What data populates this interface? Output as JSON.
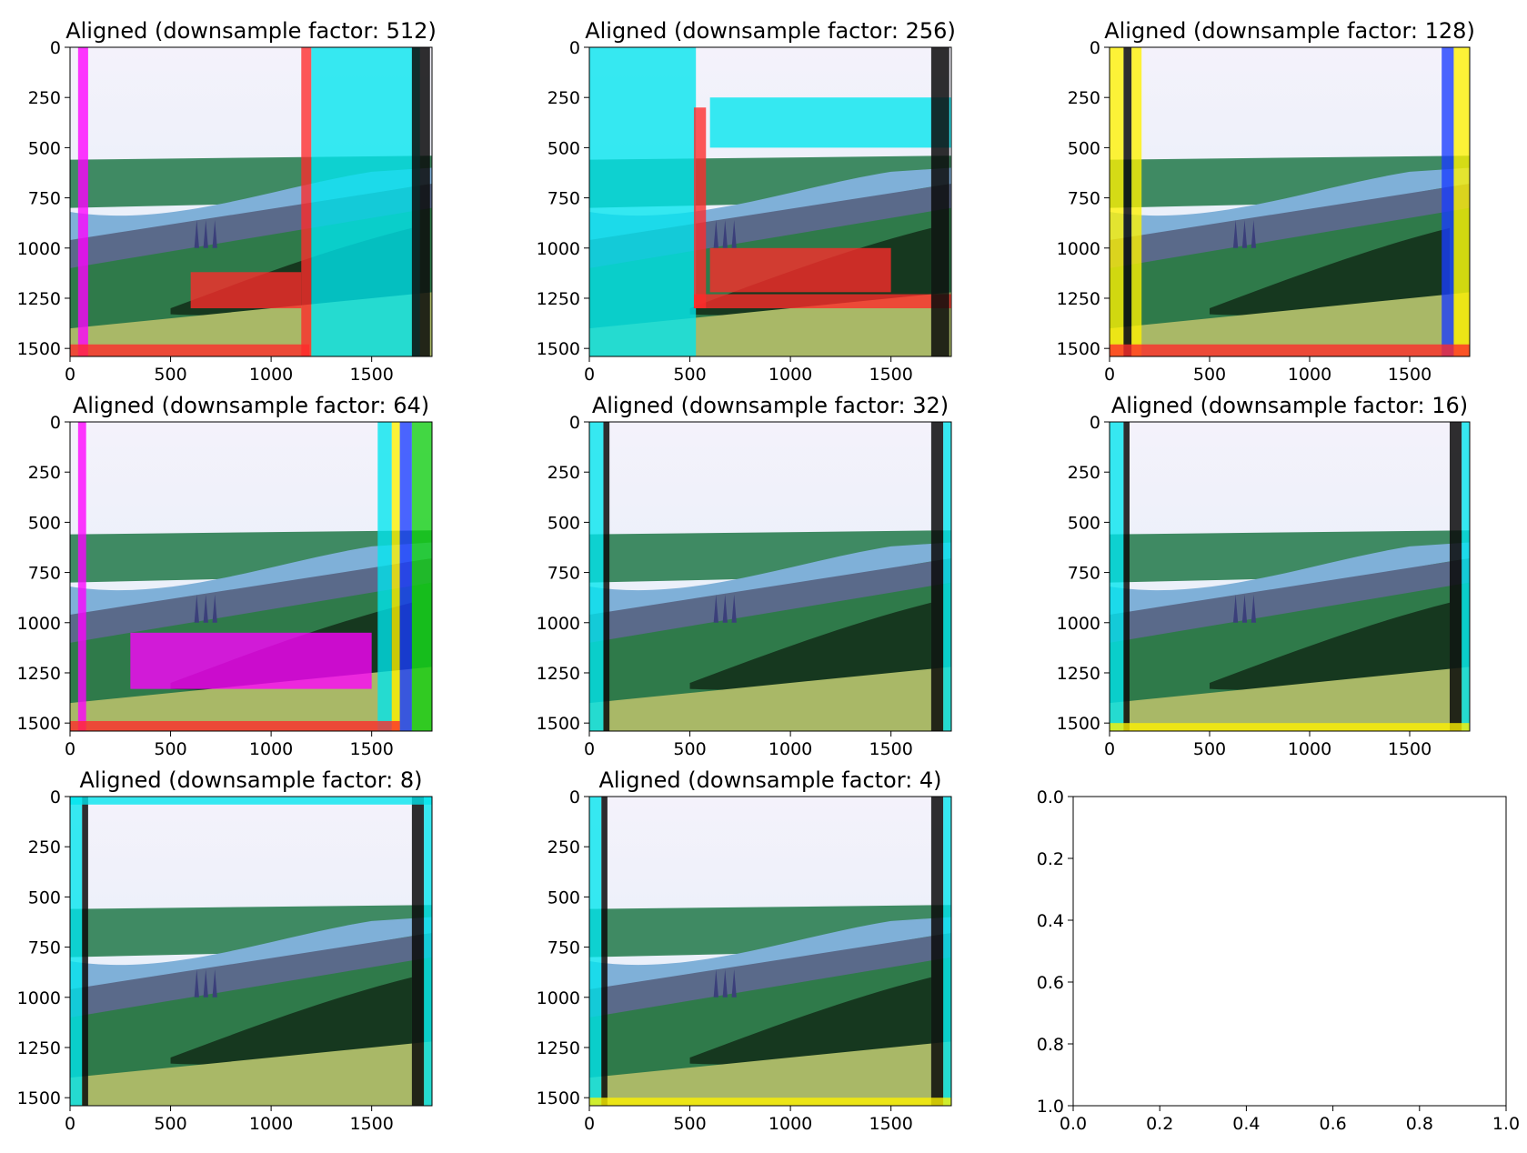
{
  "figure": {
    "layout": "3x3 grid of subplots",
    "colors": {
      "sky": "#e3eef8",
      "sky_top": "#f4f2fb",
      "water": "#7fb0d8",
      "hill_green": "#2f7a4a",
      "dark_forest": "#16381f",
      "meadow": "#a9b867",
      "cyan": "#00e6ee",
      "magenta": "#ff00ff",
      "yellow": "#fff200",
      "red": "#ff2a2a",
      "green": "#10d010",
      "blue": "#1a3cff",
      "black": "#0a0a0a"
    }
  },
  "chart_data": [
    {
      "type": "image",
      "title": "Aligned (downsample factor: 512)",
      "downsample_factor": 512,
      "xlim": [
        0,
        1800
      ],
      "ylim": [
        1540,
        0
      ],
      "xticks": [
        0,
        500,
        1000,
        1500
      ],
      "yticks": [
        0,
        250,
        500,
        750,
        1000,
        1250,
        1500
      ],
      "description_artifacts": [
        "cyan-band-right",
        "red-horizontal-band",
        "shifted-channel-seam"
      ],
      "artifact_bands": [
        {
          "x0": 1150,
          "x1": 1200,
          "y0": 0,
          "y1": 1540,
          "color": "red"
        },
        {
          "x0": 1200,
          "x1": 1740,
          "y0": 0,
          "y1": 1540,
          "color": "cyan"
        },
        {
          "x0": 40,
          "x1": 90,
          "y0": 0,
          "y1": 1540,
          "color": "magenta"
        },
        {
          "x0": 0,
          "x1": 1190,
          "y0": 1480,
          "y1": 1540,
          "color": "red"
        },
        {
          "x0": 600,
          "x1": 1150,
          "y0": 1120,
          "y1": 1300,
          "color": "red"
        },
        {
          "x0": 1700,
          "x1": 1790,
          "y0": 0,
          "y1": 1540,
          "color": "black"
        }
      ]
    },
    {
      "type": "image",
      "title": "Aligned (downsample factor: 256)",
      "downsample_factor": 256,
      "xlim": [
        0,
        1800
      ],
      "ylim": [
        1540,
        0
      ],
      "xticks": [
        0,
        500,
        1000,
        1500
      ],
      "yticks": [
        0,
        250,
        500,
        750,
        1000,
        1250,
        1500
      ],
      "artifact_bands": [
        {
          "x0": 0,
          "x1": 530,
          "y0": 0,
          "y1": 1540,
          "color": "cyan"
        },
        {
          "x0": 520,
          "x1": 580,
          "y0": 300,
          "y1": 1300,
          "color": "red"
        },
        {
          "x0": 520,
          "x1": 1800,
          "y0": 1230,
          "y1": 1300,
          "color": "red"
        },
        {
          "x0": 600,
          "x1": 1500,
          "y0": 1000,
          "y1": 1220,
          "color": "red"
        },
        {
          "x0": 600,
          "x1": 1800,
          "y0": 250,
          "y1": 500,
          "color": "cyan"
        },
        {
          "x0": 1700,
          "x1": 1790,
          "y0": 0,
          "y1": 1540,
          "color": "black"
        }
      ]
    },
    {
      "type": "image",
      "title": "Aligned (downsample factor: 128)",
      "downsample_factor": 128,
      "xlim": [
        0,
        1800
      ],
      "ylim": [
        1540,
        0
      ],
      "xticks": [
        0,
        500,
        1000,
        1500
      ],
      "yticks": [
        0,
        250,
        500,
        750,
        1000,
        1250,
        1500
      ],
      "artifact_bands": [
        {
          "x0": 0,
          "x1": 70,
          "y0": 0,
          "y1": 1540,
          "color": "yellow"
        },
        {
          "x0": 70,
          "x1": 110,
          "y0": 0,
          "y1": 1540,
          "color": "black"
        },
        {
          "x0": 110,
          "x1": 160,
          "y0": 0,
          "y1": 1540,
          "color": "yellow"
        },
        {
          "x0": 1720,
          "x1": 1800,
          "y0": 0,
          "y1": 1540,
          "color": "yellow"
        },
        {
          "x0": 1660,
          "x1": 1720,
          "y0": 0,
          "y1": 1540,
          "color": "blue"
        },
        {
          "x0": 0,
          "x1": 1800,
          "y0": 1480,
          "y1": 1540,
          "color": "red"
        }
      ]
    },
    {
      "type": "image",
      "title": "Aligned (downsample factor: 64)",
      "downsample_factor": 64,
      "xlim": [
        0,
        1800
      ],
      "ylim": [
        1540,
        0
      ],
      "xticks": [
        0,
        500,
        1000,
        1500
      ],
      "yticks": [
        0,
        250,
        500,
        750,
        1000,
        1250,
        1500
      ],
      "artifact_bands": [
        {
          "x0": 1530,
          "x1": 1600,
          "y0": 0,
          "y1": 1540,
          "color": "cyan"
        },
        {
          "x0": 1600,
          "x1": 1640,
          "y0": 0,
          "y1": 1540,
          "color": "yellow"
        },
        {
          "x0": 1640,
          "x1": 1700,
          "y0": 0,
          "y1": 1540,
          "color": "blue"
        },
        {
          "x0": 1700,
          "x1": 1800,
          "y0": 0,
          "y1": 1540,
          "color": "green"
        },
        {
          "x0": 40,
          "x1": 80,
          "y0": 0,
          "y1": 1540,
          "color": "magenta"
        },
        {
          "x0": 0,
          "x1": 1640,
          "y0": 1490,
          "y1": 1540,
          "color": "red"
        },
        {
          "x0": 300,
          "x1": 1500,
          "y0": 1050,
          "y1": 1330,
          "color": "magenta"
        }
      ]
    },
    {
      "type": "image",
      "title": "Aligned (downsample factor: 32)",
      "downsample_factor": 32,
      "xlim": [
        0,
        1800
      ],
      "ylim": [
        1540,
        0
      ],
      "xticks": [
        0,
        500,
        1000,
        1500
      ],
      "yticks": [
        0,
        250,
        500,
        750,
        1000,
        1250,
        1500
      ],
      "artifact_bands": [
        {
          "x0": 0,
          "x1": 70,
          "y0": 0,
          "y1": 1540,
          "color": "cyan"
        },
        {
          "x0": 70,
          "x1": 100,
          "y0": 0,
          "y1": 1540,
          "color": "black"
        },
        {
          "x0": 1700,
          "x1": 1760,
          "y0": 0,
          "y1": 1540,
          "color": "black"
        },
        {
          "x0": 1760,
          "x1": 1800,
          "y0": 0,
          "y1": 1540,
          "color": "cyan"
        }
      ]
    },
    {
      "type": "image",
      "title": "Aligned (downsample factor: 16)",
      "downsample_factor": 16,
      "xlim": [
        0,
        1800
      ],
      "ylim": [
        1540,
        0
      ],
      "xticks": [
        0,
        500,
        1000,
        1500
      ],
      "yticks": [
        0,
        250,
        500,
        750,
        1000,
        1250,
        1500
      ],
      "artifact_bands": [
        {
          "x0": 0,
          "x1": 70,
          "y0": 0,
          "y1": 1540,
          "color": "cyan"
        },
        {
          "x0": 70,
          "x1": 100,
          "y0": 0,
          "y1": 1540,
          "color": "black"
        },
        {
          "x0": 1700,
          "x1": 1760,
          "y0": 0,
          "y1": 1540,
          "color": "black"
        },
        {
          "x0": 1760,
          "x1": 1800,
          "y0": 0,
          "y1": 1540,
          "color": "cyan"
        },
        {
          "x0": 0,
          "x1": 1800,
          "y0": 1500,
          "y1": 1540,
          "color": "yellow"
        }
      ]
    },
    {
      "type": "image",
      "title": "Aligned (downsample factor: 8)",
      "downsample_factor": 8,
      "xlim": [
        0,
        1800
      ],
      "ylim": [
        1540,
        0
      ],
      "xticks": [
        0,
        500,
        1000,
        1500
      ],
      "yticks": [
        0,
        250,
        500,
        750,
        1000,
        1250,
        1500
      ],
      "artifact_bands": [
        {
          "x0": 0,
          "x1": 60,
          "y0": 0,
          "y1": 1540,
          "color": "cyan"
        },
        {
          "x0": 60,
          "x1": 90,
          "y0": 0,
          "y1": 1540,
          "color": "black"
        },
        {
          "x0": 1700,
          "x1": 1760,
          "y0": 0,
          "y1": 1540,
          "color": "black"
        },
        {
          "x0": 1760,
          "x1": 1800,
          "y0": 0,
          "y1": 1540,
          "color": "cyan"
        },
        {
          "x0": 0,
          "x1": 1800,
          "y0": 0,
          "y1": 40,
          "color": "cyan"
        }
      ]
    },
    {
      "type": "image",
      "title": "Aligned (downsample factor: 4)",
      "downsample_factor": 4,
      "xlim": [
        0,
        1800
      ],
      "ylim": [
        1540,
        0
      ],
      "xticks": [
        0,
        500,
        1000,
        1500
      ],
      "yticks": [
        0,
        250,
        500,
        750,
        1000,
        1250,
        1500
      ],
      "artifact_bands": [
        {
          "x0": 0,
          "x1": 60,
          "y0": 0,
          "y1": 1540,
          "color": "cyan"
        },
        {
          "x0": 60,
          "x1": 90,
          "y0": 0,
          "y1": 1540,
          "color": "black"
        },
        {
          "x0": 1700,
          "x1": 1760,
          "y0": 0,
          "y1": 1540,
          "color": "black"
        },
        {
          "x0": 1760,
          "x1": 1800,
          "y0": 0,
          "y1": 1540,
          "color": "cyan"
        },
        {
          "x0": 0,
          "x1": 1800,
          "y0": 1500,
          "y1": 1540,
          "color": "yellow"
        }
      ]
    },
    {
      "type": "empty",
      "title": "",
      "xlim": [
        0.0,
        1.0
      ],
      "ylim": [
        0.0,
        1.0
      ],
      "xticks": [
        "0.0",
        "0.2",
        "0.4",
        "0.6",
        "0.8",
        "1.0"
      ],
      "yticks": [
        "0.0",
        "0.2",
        "0.4",
        "0.6",
        "0.8",
        "1.0"
      ]
    }
  ]
}
